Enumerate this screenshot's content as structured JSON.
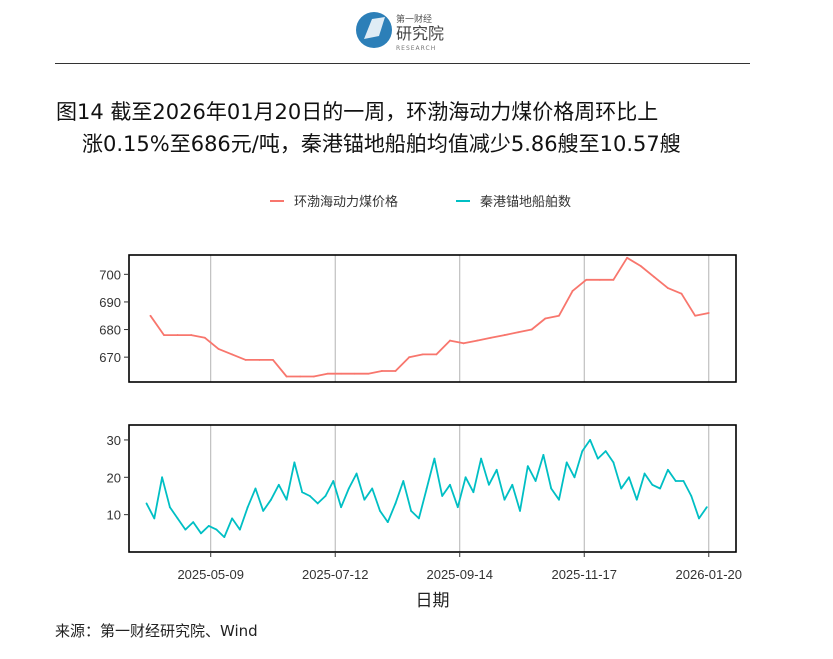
{
  "logo": {
    "line1": "第一财经",
    "line2": "研究院",
    "line3": "RESEARCH"
  },
  "title": {
    "line1": "图14  截至2026年01月20日的一周，环渤海动力煤价格周环比上",
    "line2": "涨0.15%至686元/吨，秦港锚地船舶均值减少5.86艘至10.57艘"
  },
  "source": "来源：第一财经研究院、Wind",
  "colors": {
    "price": "#F8766D",
    "ships": "#00BFC4"
  },
  "chart_data": {
    "type": "line",
    "xlabel": "日期",
    "x_ticks": [
      "2025-05-09",
      "2025-07-12",
      "2025-09-14",
      "2025-11-17",
      "2026-01-20"
    ],
    "xlim": [
      "2025-03-28",
      "2026-01-34"
    ],
    "legend": {
      "position": "top"
    },
    "panels": [
      {
        "name": "环渤海动力煤价格",
        "yticks": [
          670,
          680,
          690,
          700
        ],
        "ylim": [
          661,
          707
        ],
        "dates": [
          "2025-04-08",
          "2025-04-15",
          "2025-04-22",
          "2025-04-29",
          "2025-05-06",
          "2025-05-13",
          "2025-05-20",
          "2025-05-27",
          "2025-06-03",
          "2025-06-10",
          "2025-06-17",
          "2025-06-24",
          "2025-07-01",
          "2025-07-08",
          "2025-07-15",
          "2025-07-22",
          "2025-07-29",
          "2025-08-05",
          "2025-08-12",
          "2025-08-19",
          "2025-08-26",
          "2025-09-02",
          "2025-09-09",
          "2025-09-16",
          "2025-09-23",
          "2025-09-30",
          "2025-10-07",
          "2025-10-14",
          "2025-10-21",
          "2025-10-28",
          "2025-11-04",
          "2025-11-11",
          "2025-11-18",
          "2025-11-25",
          "2025-12-02",
          "2025-12-09",
          "2025-12-16",
          "2025-12-23",
          "2025-12-30",
          "2026-01-06",
          "2026-01-13",
          "2026-01-20"
        ],
        "values": [
          685,
          678,
          678,
          678,
          677,
          673,
          671,
          669,
          669,
          669,
          663,
          663,
          663,
          664,
          664,
          664,
          664,
          665,
          665,
          670,
          671,
          671,
          676,
          675,
          676,
          677,
          678,
          679,
          680,
          684,
          685,
          694,
          698,
          698,
          698,
          706,
          703,
          699,
          695,
          693,
          685,
          686
        ]
      },
      {
        "name": "秦港锚地船舶数",
        "yticks": [
          10,
          20,
          30
        ],
        "ylim": [
          0,
          34
        ],
        "dates": [
          "2025-04-06",
          "2025-04-10",
          "2025-04-14",
          "2025-04-18",
          "2025-04-22",
          "2025-04-26",
          "2025-04-30",
          "2025-05-04",
          "2025-05-08",
          "2025-05-12",
          "2025-05-16",
          "2025-05-20",
          "2025-05-24",
          "2025-05-28",
          "2025-06-01",
          "2025-06-05",
          "2025-06-09",
          "2025-06-13",
          "2025-06-17",
          "2025-06-21",
          "2025-06-25",
          "2025-06-29",
          "2025-07-03",
          "2025-07-07",
          "2025-07-11",
          "2025-07-15",
          "2025-07-19",
          "2025-07-23",
          "2025-07-27",
          "2025-07-31",
          "2025-08-04",
          "2025-08-08",
          "2025-08-12",
          "2025-08-16",
          "2025-08-20",
          "2025-08-24",
          "2025-08-28",
          "2025-09-01",
          "2025-09-05",
          "2025-09-09",
          "2025-09-13",
          "2025-09-17",
          "2025-09-21",
          "2025-09-25",
          "2025-09-29",
          "2025-10-03",
          "2025-10-07",
          "2025-10-11",
          "2025-10-15",
          "2025-10-19",
          "2025-10-23",
          "2025-10-27",
          "2025-10-31",
          "2025-11-04",
          "2025-11-08",
          "2025-11-12",
          "2025-11-16",
          "2025-11-20",
          "2025-11-24",
          "2025-11-28",
          "2025-12-02",
          "2025-12-06",
          "2025-12-10",
          "2025-12-14",
          "2025-12-18",
          "2025-12-22",
          "2025-12-26",
          "2025-12-30",
          "2026-01-03",
          "2026-01-07",
          "2026-01-11",
          "2026-01-15",
          "2026-01-19"
        ],
        "values": [
          13,
          9,
          20,
          12,
          9,
          6,
          8,
          5,
          7,
          6,
          4,
          9,
          6,
          12,
          17,
          11,
          14,
          18,
          14,
          24,
          16,
          15,
          13,
          15,
          19,
          12,
          17,
          21,
          14,
          17,
          11,
          8,
          13,
          19,
          11,
          9,
          17,
          25,
          15,
          18,
          12,
          20,
          16,
          25,
          18,
          22,
          14,
          18,
          11,
          23,
          19,
          26,
          17,
          14,
          24,
          20,
          27,
          30,
          25,
          27,
          24,
          17,
          20,
          14,
          21,
          18,
          17,
          22,
          19,
          19,
          15,
          9,
          12
        ]
      }
    ]
  }
}
